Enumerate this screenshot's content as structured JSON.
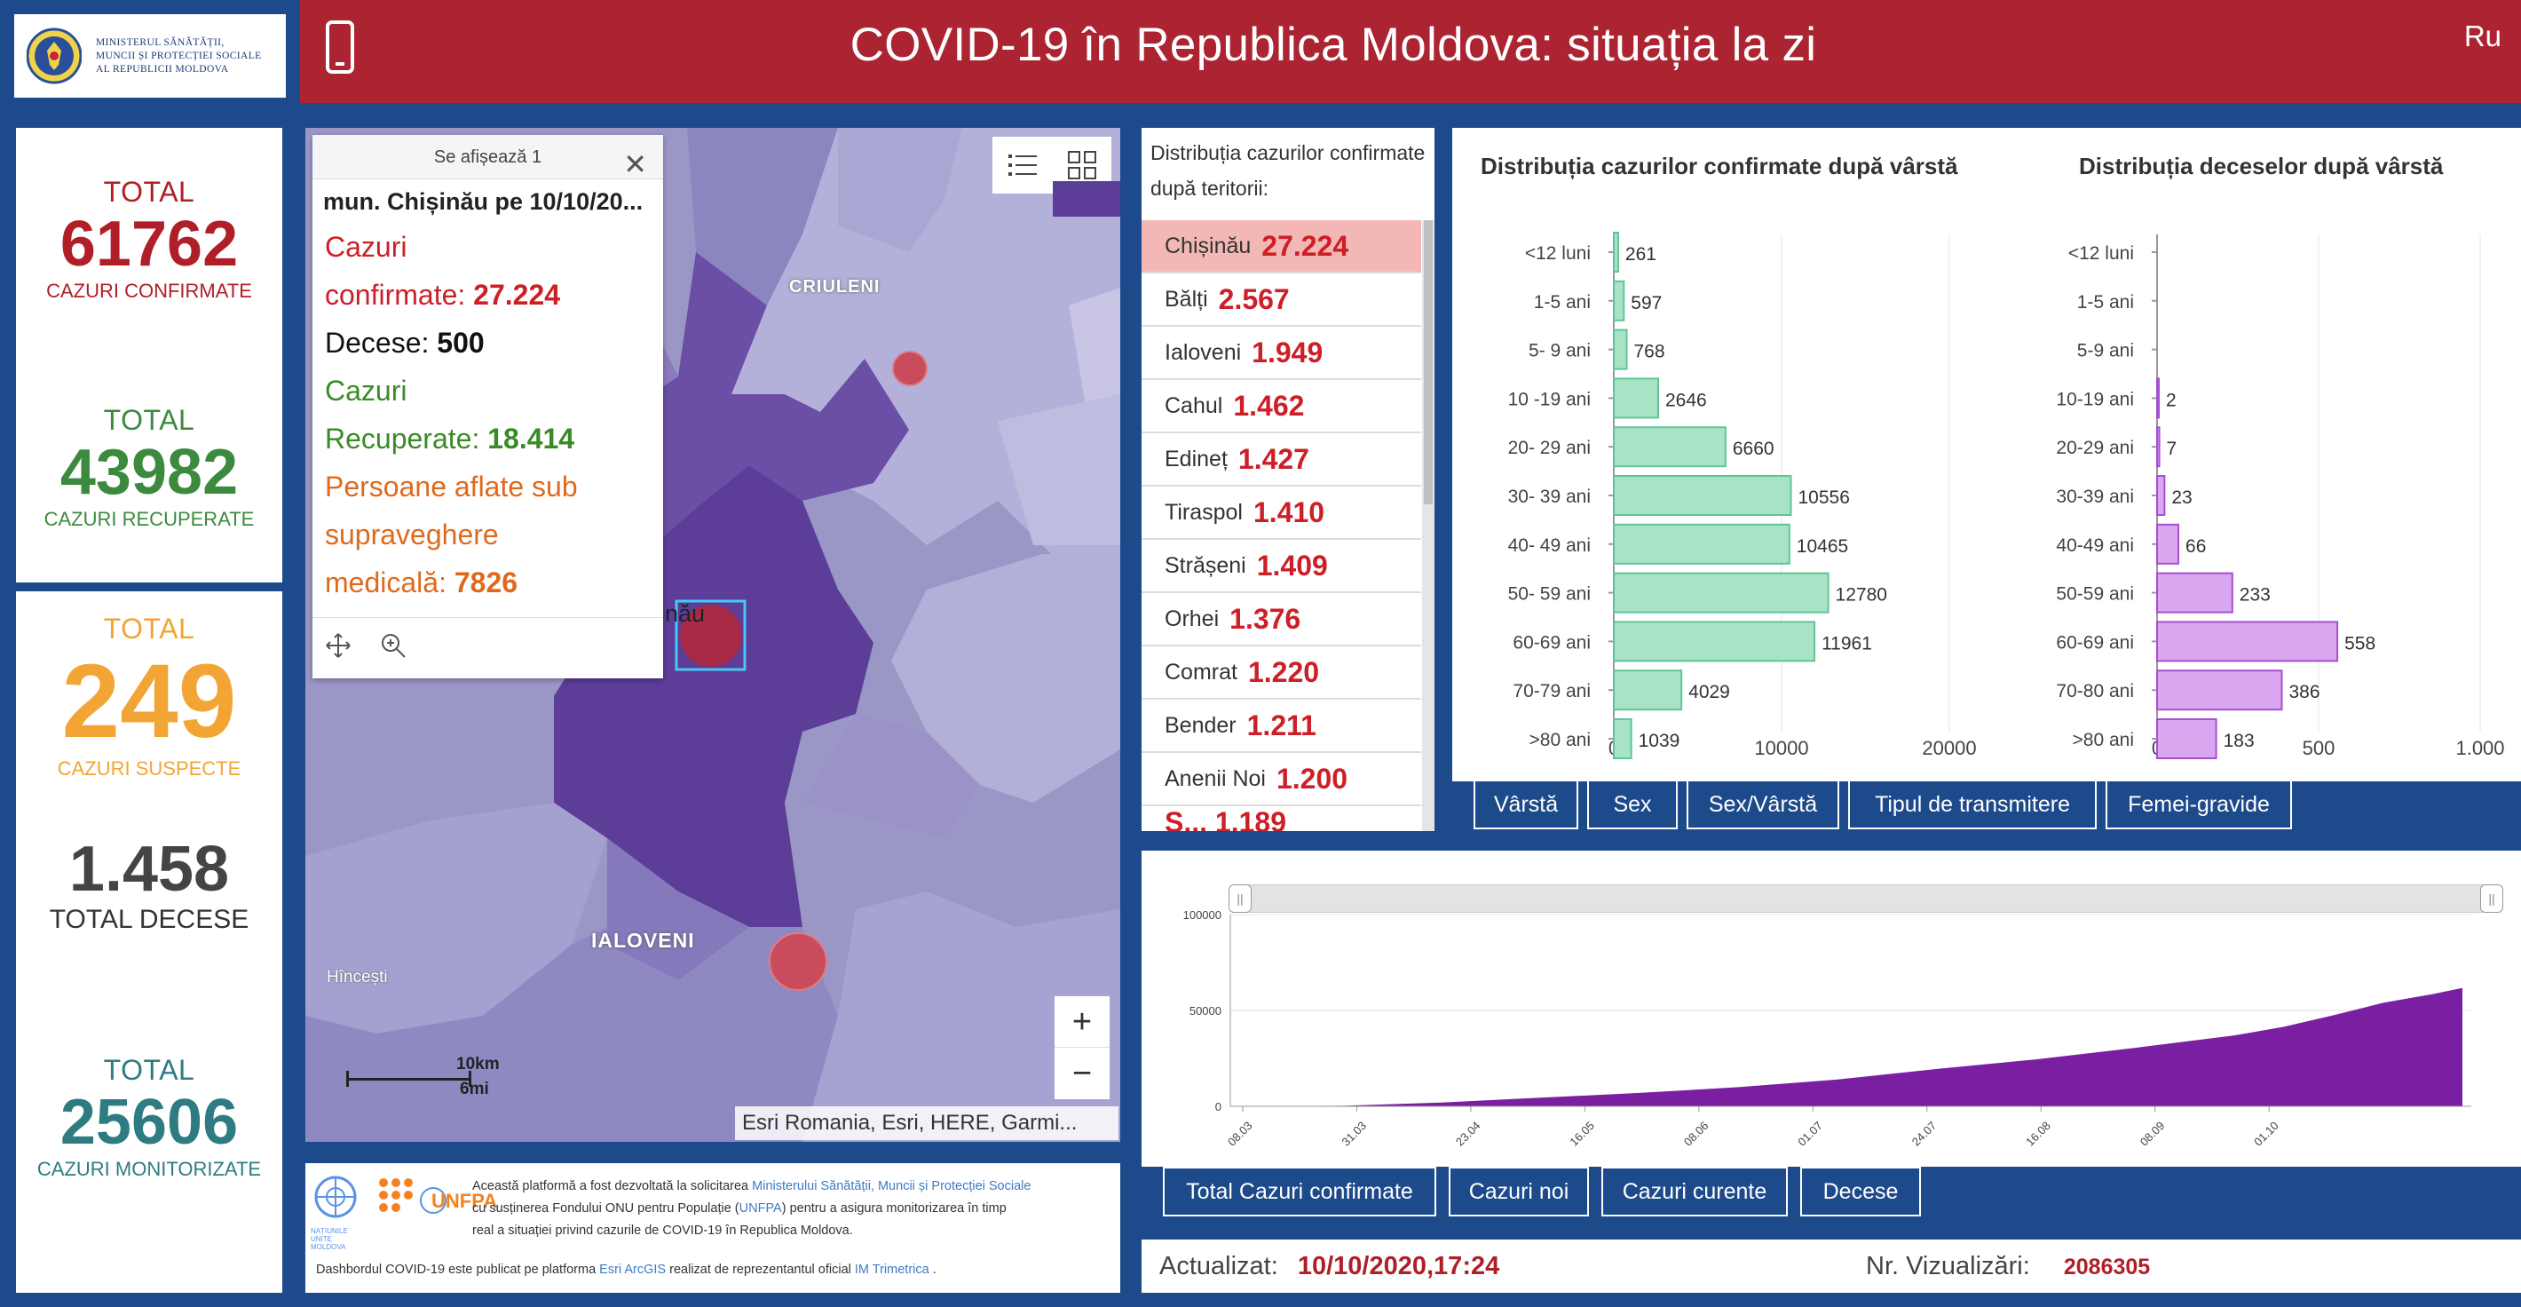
{
  "header": {
    "ministry_lines": [
      "MINISTERUL SĂNĂTĂȚII,",
      "MUNCII ȘI PROTECȚIEI SOCIALE",
      "AL REPUBLICII MOLDOVA"
    ],
    "title": "COVID-19 în Republica Moldova: situația la zi",
    "lang": "Ru"
  },
  "stats": {
    "confirmed": {
      "heading": "TOTAL",
      "value": "61762",
      "label": "CAZURI CONFIRMATE",
      "color": "#b01e28"
    },
    "recovered": {
      "heading": "TOTAL",
      "value": "43982",
      "label": "CAZURI RECUPERATE",
      "color": "#3b8a3e"
    },
    "suspect": {
      "heading": "TOTAL",
      "value": "249",
      "label": "CAZURI SUSPECTE",
      "color": "#f2a535"
    },
    "deaths": {
      "value": "1.458",
      "label": "TOTAL DECESE",
      "color": "#444444"
    },
    "monitored": {
      "heading": "TOTAL",
      "value": "25606",
      "label": "CAZURI MONITORIZATE",
      "color": "#2e7c82"
    }
  },
  "popup": {
    "header": "Se afișează 1",
    "subtitle": "mun. Chișinău pe 10/10/20...",
    "confirmed_label_1": "Cazuri",
    "confirmed_label_2": "confirmate:",
    "confirmed_value": "27.224",
    "deaths_label": "Decese:",
    "deaths_value": "500",
    "recovered_label_1": "Cazuri",
    "recovered_label_2": "Recuperate:",
    "recovered_value": "18.414",
    "monitored_label_1": "Persoane aflate sub",
    "monitored_label_2": "supraveghere",
    "monitored_label_3": "medicală:",
    "monitored_value": "7826"
  },
  "map": {
    "labels": {
      "criuleni": "CRIULENI",
      "ialoveni": "IALOVENI",
      "hincesti": "Hîncești",
      "chisinau_partial": "nău"
    },
    "scale_km": "10km",
    "scale_mi": "6mi",
    "attribution": "Esri Romania, Esri, HERE, Garmi...",
    "zoom_in": "+",
    "zoom_out": "−"
  },
  "info": {
    "text_1": "Această platformă a fost dezvoltată la solicitarea",
    "link_ministry": "Ministerului Sănătății, Muncii și Protecției Sociale",
    "text_2": "cu susținerea Fondului ONU pentru Populație (",
    "link_unfpa": "UNFPA",
    "text_3": ") pentru a asigura monitorizarea în timp",
    "text_4": "real a situației privind cazurile de  COVID-19 în Republica Moldova.",
    "text_5": "Dashbordul COVID-19 este publicat pe platforma",
    "link_arcgis": "Esri ArcGIS",
    "text_6": "realizat de reprezentantul oficial",
    "link_im": "IM Trimetrica",
    "text_7": ".",
    "un_label": "NAȚIUNILE UNITE MOLDOVA",
    "unfpa_label": "UNFPA"
  },
  "territories": {
    "header": "Distribuția cazurilor confirmate după teritorii:",
    "rows": [
      {
        "name": "Chișinău",
        "value": "27.224"
      },
      {
        "name": "Bălți",
        "value": "2.567"
      },
      {
        "name": "Ialoveni",
        "value": "1.949"
      },
      {
        "name": "Cahul",
        "value": "1.462"
      },
      {
        "name": "Edineț",
        "value": "1.427"
      },
      {
        "name": "Tiraspol",
        "value": "1.410"
      },
      {
        "name": "Strășeni",
        "value": "1.409"
      },
      {
        "name": "Orhei",
        "value": "1.376"
      },
      {
        "name": "Comrat",
        "value": "1.220"
      },
      {
        "name": "Bender",
        "value": "1.211"
      },
      {
        "name": "Anenii Noi",
        "value": "1.200"
      }
    ],
    "partial_row": "S...  1.189"
  },
  "chart_data": [
    {
      "type": "bar",
      "title": "Distribuția cazurilor confirmate după vârstă",
      "categories": [
        "<12 luni",
        "1-5 ani",
        "5- 9 ani",
        "10 -19 ani",
        "20- 29 ani",
        "30- 39 ani",
        "40- 49 ani",
        "50- 59 ani",
        "60-69 ani",
        "70-79 ani",
        ">80 ani"
      ],
      "values": [
        261,
        597,
        768,
        2646,
        6660,
        10556,
        10465,
        12780,
        11961,
        4029,
        1039
      ],
      "xlim": [
        0,
        20000
      ],
      "xticks": [
        "0",
        "10000",
        "20000"
      ],
      "orientation": "horizontal",
      "color": "#a9e3c6"
    },
    {
      "type": "bar",
      "title": "Distribuția deceselor după vârstă",
      "categories": [
        "<12 luni",
        "1-5 ani",
        "5-9 ani",
        "10-19 ani",
        "20-29 ani",
        "30-39 ani",
        "40-49 ani",
        "50-59 ani",
        "60-69 ani",
        "70-80 ani",
        ">80 ani"
      ],
      "values": [
        0,
        0,
        0,
        2,
        7,
        23,
        66,
        233,
        558,
        386,
        183
      ],
      "labels": [
        "",
        "",
        "",
        "2",
        "7",
        "23",
        "66",
        "233",
        "558",
        "386",
        "183"
      ],
      "xlim": [
        0,
        1000
      ],
      "xticks": [
        "0",
        "500",
        "1.000"
      ],
      "orientation": "horizontal",
      "color": "#d9a6ef"
    },
    {
      "type": "area",
      "x_ticks": [
        "08.03",
        "31.03",
        "23.04",
        "16.05",
        "08.06",
        "01.07",
        "24.07",
        "16.08",
        "08.09",
        "01.10"
      ],
      "yticks": [
        "0",
        "50000",
        "100000"
      ],
      "ylim": [
        0,
        100000
      ],
      "x_start": "08.03",
      "x_end": "10.10",
      "points": [
        [
          0,
          0
        ],
        [
          20,
          300
        ],
        [
          40,
          2000
        ],
        [
          60,
          4500
        ],
        [
          80,
          7000
        ],
        [
          100,
          10000
        ],
        [
          120,
          14000
        ],
        [
          140,
          19500
        ],
        [
          160,
          24500
        ],
        [
          180,
          30500
        ],
        [
          200,
          37000
        ],
        [
          210,
          41500
        ],
        [
          220,
          47500
        ],
        [
          230,
          54000
        ],
        [
          240,
          58500
        ],
        [
          246,
          61762
        ]
      ],
      "color": "#7b1fa2"
    }
  ],
  "chart_tabs": [
    "Vârstă",
    "Sex",
    "Sex/Vârstă",
    "Tipul de transmitere",
    "Femei-gravide"
  ],
  "timeline_tabs": [
    "Total Cazuri confirmate",
    "Cazuri noi",
    "Cazuri curente",
    "Decese"
  ],
  "footer": {
    "updated_label": "Actualizat:",
    "updated_value": "10/10/2020,17:24",
    "views_label": "Nr. Vizualizări:",
    "views_value": "2086305"
  }
}
